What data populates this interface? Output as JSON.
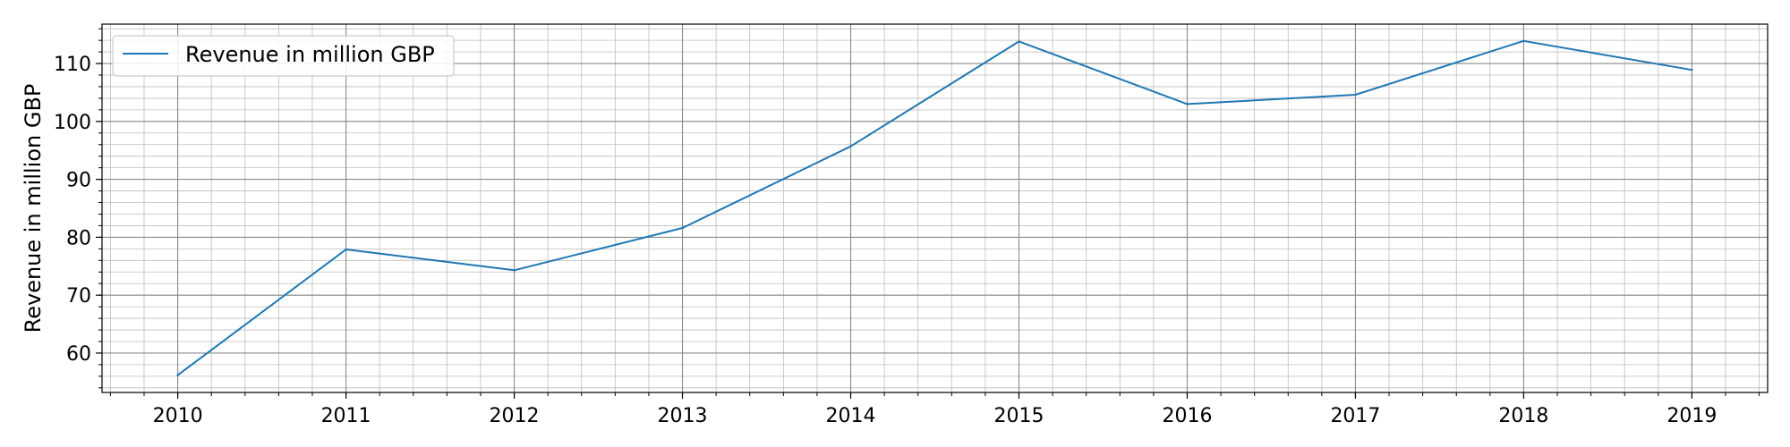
{
  "chart_data": {
    "type": "line",
    "x": [
      2010,
      2011,
      2012,
      2013,
      2014,
      2015,
      2016,
      2017,
      2018,
      2019
    ],
    "x_tick_labels": [
      "2010",
      "2011",
      "2012",
      "2013",
      "2014",
      "2015",
      "2016",
      "2017",
      "2018",
      "2019"
    ],
    "series": [
      {
        "name": "Revenue in million GBP",
        "values": [
          56.2,
          77.9,
          74.3,
          81.6,
          95.7,
          113.8,
          103.0,
          104.6,
          113.9,
          108.9
        ],
        "color": "#1f77b4"
      }
    ],
    "title": "",
    "xlabel": "",
    "ylabel": "Revenue in million GBP",
    "xlim": [
      2009.55,
      2019.45
    ],
    "ylim": [
      53.2,
      116.8
    ],
    "y_ticks": [
      60,
      70,
      80,
      90,
      100,
      110
    ],
    "y_tick_labels": [
      "60",
      "70",
      "80",
      "90",
      "100",
      "110"
    ],
    "x_minor_step": 0.2,
    "y_minor_step": 2,
    "grid": true,
    "minor_grid": true,
    "legend_position": "top-left"
  }
}
